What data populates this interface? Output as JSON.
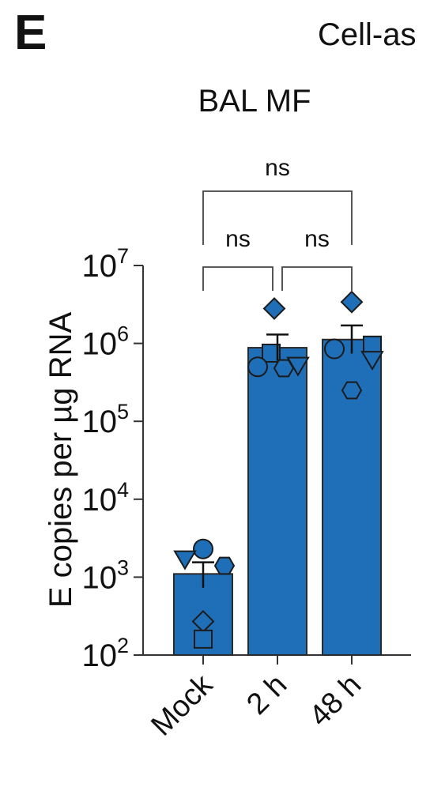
{
  "panel": {
    "letter": "E",
    "header_fragment": "Cell-as"
  },
  "chart_data": {
    "type": "bar",
    "title": "BAL MF",
    "ylabel": "E copies per µg RNA",
    "yscale": "log",
    "ylim": [
      100,
      10000000
    ],
    "yticks": [
      {
        "value": 100,
        "base": "10",
        "exp": "2"
      },
      {
        "value": 1000,
        "base": "10",
        "exp": "3"
      },
      {
        "value": 10000,
        "base": "10",
        "exp": "4"
      },
      {
        "value": 100000,
        "base": "10",
        "exp": "5"
      },
      {
        "value": 1000000,
        "base": "10",
        "exp": "6"
      },
      {
        "value": 10000000,
        "base": "10",
        "exp": "7"
      }
    ],
    "categories": [
      "Mock",
      "2 h",
      "48 h"
    ],
    "bar_color": "#1f6fb8",
    "bars": [
      {
        "category": "Mock",
        "mean": 1100,
        "sem_upper": 1550,
        "sem_lower": 730,
        "points": [
          {
            "shape": "circle",
            "value": 2300
          },
          {
            "shape": "triangle-down",
            "value": 1700
          },
          {
            "shape": "hexagon",
            "value": 1400
          },
          {
            "shape": "diamond",
            "value": 270
          },
          {
            "shape": "square",
            "value": 160
          }
        ]
      },
      {
        "category": "2 h",
        "mean": 880000,
        "sem_upper": 1300000,
        "sem_lower": 600000,
        "points": [
          {
            "shape": "diamond",
            "value": 2800000
          },
          {
            "shape": "square",
            "value": 750000
          },
          {
            "shape": "circle",
            "value": 500000
          },
          {
            "shape": "hexagon",
            "value": 480000
          },
          {
            "shape": "triangle-down",
            "value": 520000
          }
        ]
      },
      {
        "category": "48 h",
        "mean": 1120000,
        "sem_upper": 1700000,
        "sem_lower": 740000,
        "points": [
          {
            "shape": "diamond",
            "value": 3400000
          },
          {
            "shape": "square",
            "value": 950000
          },
          {
            "shape": "circle",
            "value": 850000
          },
          {
            "shape": "triangle-down",
            "value": 620000
          },
          {
            "shape": "hexagon",
            "value": 250000
          }
        ]
      }
    ],
    "significance": [
      {
        "from": "Mock",
        "to": "2 h",
        "label": "ns"
      },
      {
        "from": "2 h",
        "to": "48 h",
        "label": "ns"
      },
      {
        "from": "Mock",
        "to": "48 h",
        "label": "ns"
      }
    ]
  }
}
